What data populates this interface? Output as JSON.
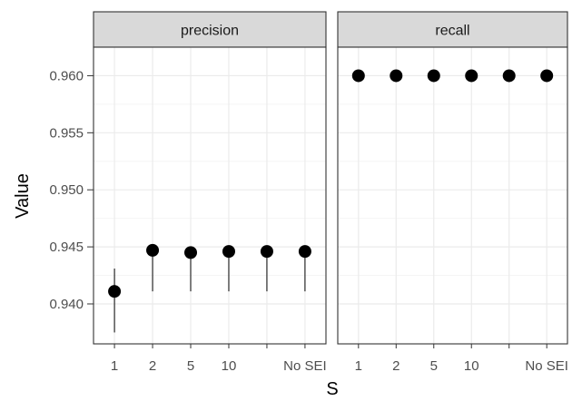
{
  "chart_data": {
    "type": "scatter",
    "xlabel": "S",
    "ylabel": "Value",
    "categories": [
      "1",
      "2",
      "5",
      "10",
      "",
      "No SEI"
    ],
    "ylim": [
      0.9365,
      0.9625
    ],
    "yticks": [
      0.94,
      0.945,
      0.95,
      0.955,
      0.96
    ],
    "ytick_labels": [
      "0.940",
      "0.945",
      "0.950",
      "0.955",
      "0.960"
    ],
    "grid": true,
    "panels": [
      {
        "name": "precision",
        "values": [
          0.9411,
          0.9447,
          0.9445,
          0.9446,
          0.9446,
          0.9446
        ],
        "lower": [
          0.9375,
          0.9411,
          0.9411,
          0.9411,
          0.9411,
          0.9411
        ],
        "upper": [
          0.9431,
          0.9447,
          0.9445,
          0.9446,
          0.9446,
          0.9446
        ]
      },
      {
        "name": "recall",
        "values": [
          0.96,
          0.96,
          0.96,
          0.96,
          0.96,
          0.96
        ],
        "lower": [
          0.96,
          0.96,
          0.96,
          0.96,
          0.96,
          0.96
        ],
        "upper": [
          0.96,
          0.96,
          0.96,
          0.96,
          0.96,
          0.96
        ]
      }
    ],
    "colors": {
      "point": "#000000",
      "strip_fill": "#d9d9d9",
      "panel_border": "#333333",
      "grid_major": "#ebebeb",
      "grid_minor": "#f5f5f5"
    }
  }
}
